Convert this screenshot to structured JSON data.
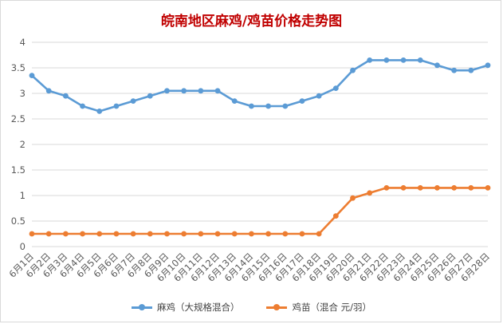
{
  "chart_data": {
    "type": "line",
    "title": "皖南地区麻鸡/鸡苗价格走势图",
    "xlabel": "",
    "ylabel": "",
    "ylim": [
      0,
      4
    ],
    "yticks": [
      "0",
      "0.5",
      "1",
      "1.5",
      "2",
      "2.5",
      "3",
      "3.5",
      "4"
    ],
    "grid": true,
    "legend_position": "bottom",
    "categories": [
      "6月1日",
      "6月2日",
      "6月3日",
      "6月4日",
      "6月5日",
      "6月6日",
      "6月7日",
      "6月8日",
      "6月9日",
      "6月10日",
      "6月11日",
      "6月12日",
      "6月13日",
      "6月14日",
      "6月15日",
      "6月16日",
      "6月17日",
      "6月18日",
      "6月19日",
      "6月20日",
      "6月21日",
      "6月22日",
      "6月23日",
      "6月24日",
      "6月25日",
      "6月26日",
      "6月27日",
      "6月28日"
    ],
    "series": [
      {
        "name": "麻鸡（大规格混合）",
        "color": "#5b9bd5",
        "values": [
          3.35,
          3.05,
          2.95,
          2.75,
          2.65,
          2.75,
          2.85,
          2.95,
          3.05,
          3.05,
          3.05,
          3.05,
          2.85,
          2.75,
          2.75,
          2.75,
          2.85,
          2.95,
          3.1,
          3.45,
          3.65,
          3.65,
          3.65,
          3.65,
          3.55,
          3.45,
          3.45,
          3.55
        ]
      },
      {
        "name": "鸡苗（混合 元/羽）",
        "color": "#ed7d31",
        "values": [
          0.25,
          0.25,
          0.25,
          0.25,
          0.25,
          0.25,
          0.25,
          0.25,
          0.25,
          0.25,
          0.25,
          0.25,
          0.25,
          0.25,
          0.25,
          0.25,
          0.25,
          0.25,
          0.6,
          0.95,
          1.05,
          1.15,
          1.15,
          1.15,
          1.15,
          1.15,
          1.15,
          1.15
        ]
      }
    ]
  }
}
